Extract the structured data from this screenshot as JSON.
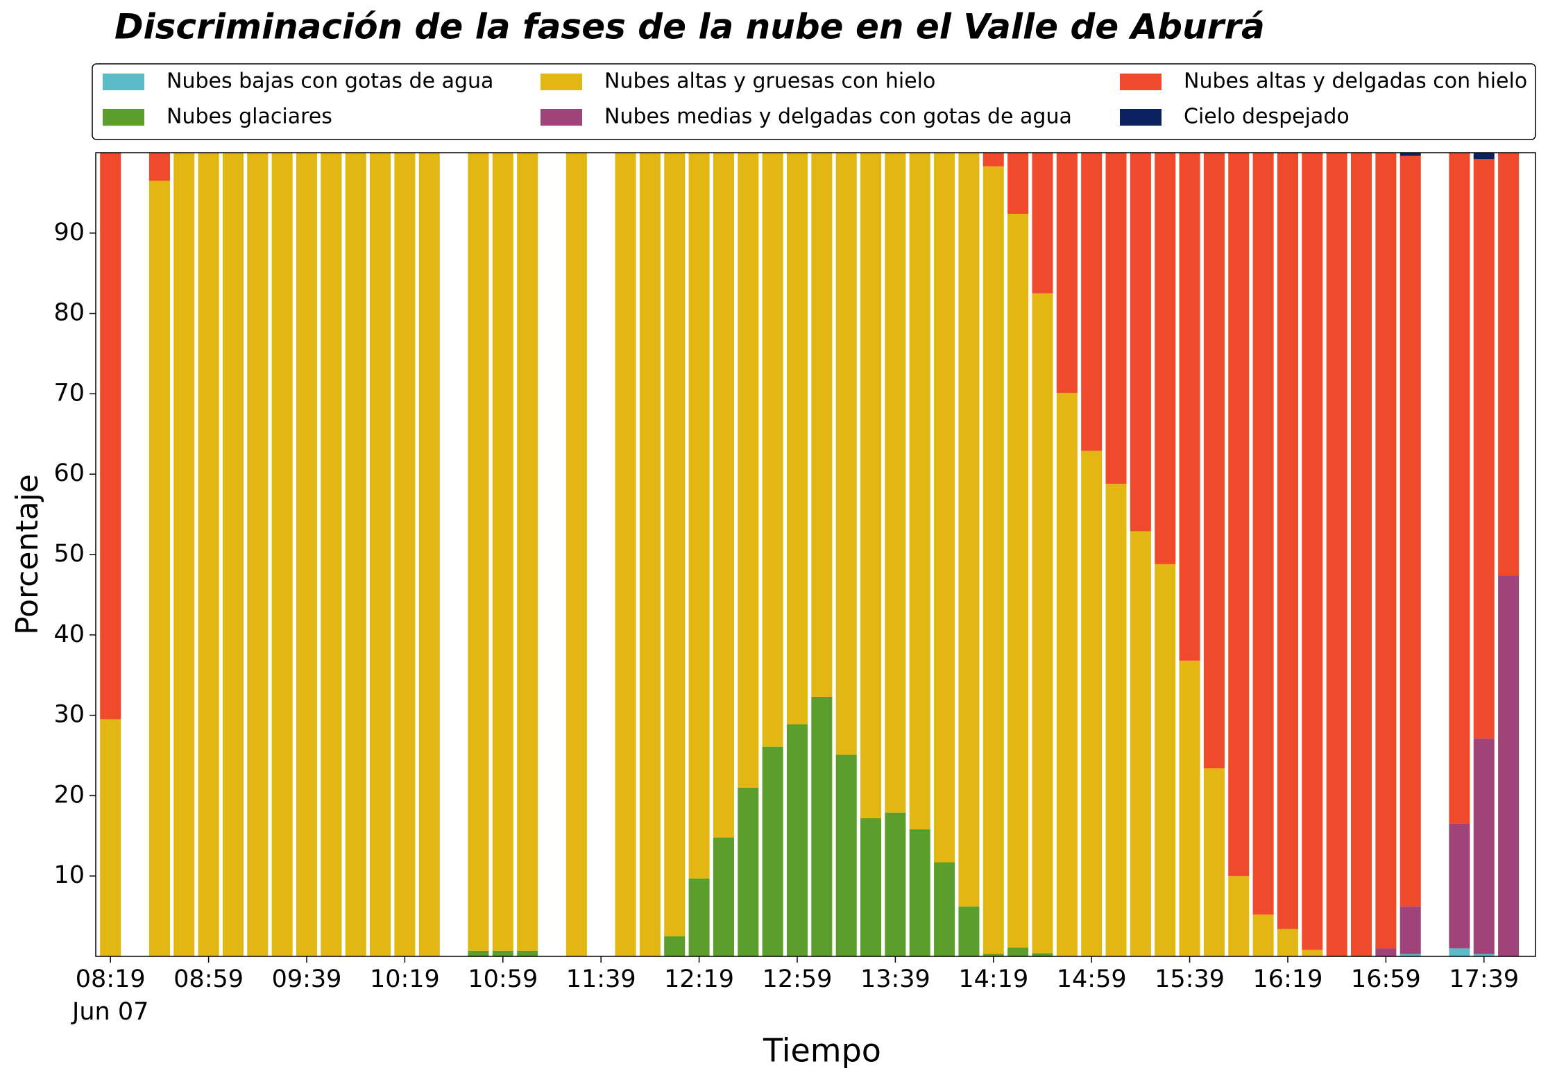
{
  "chart_data": {
    "type": "bar",
    "stacked": true,
    "title": "Discriminación de la fases de la nube en el Valle de Aburrá",
    "xlabel": "Tiempo",
    "ylabel": "Porcentaje",
    "legend": "top",
    "x": [
      "08:19",
      "08:29",
      "08:39",
      "08:49",
      "08:59",
      "09:09",
      "09:19",
      "09:29",
      "09:39",
      "09:49",
      "09:59",
      "10:09",
      "10:19",
      "10:29",
      "10:39",
      "10:49",
      "10:59",
      "11:09",
      "11:19",
      "11:29",
      "11:39",
      "11:49",
      "11:59",
      "12:09",
      "12:19",
      "12:29",
      "12:39",
      "12:49",
      "12:59",
      "13:09",
      "13:19",
      "13:29",
      "13:39",
      "13:49",
      "13:59",
      "14:09",
      "14:19",
      "14:29",
      "14:39",
      "14:49",
      "14:59",
      "15:09",
      "15:19",
      "15:29",
      "15:39",
      "15:49",
      "15:59",
      "16:09",
      "16:19",
      "16:29",
      "16:39",
      "16:49",
      "16:59",
      "17:09",
      "17:19",
      "17:29",
      "17:39",
      "17:49"
    ],
    "xlim": [
      "08:13",
      "18:00"
    ],
    "xticks": [
      "08:19",
      "08:59",
      "09:39",
      "10:19",
      "10:59",
      "11:39",
      "12:19",
      "12:59",
      "13:39",
      "14:19",
      "14:59",
      "15:39",
      "16:19",
      "16:59",
      "17:39"
    ],
    "xtick_sublabel": "Jun 07",
    "ylim": [
      0,
      100
    ],
    "yticks": [
      10,
      20,
      30,
      40,
      50,
      60,
      70,
      80,
      90
    ],
    "series": [
      {
        "name": "Nubes bajas con gotas de agua",
        "color": "#5bbcc8",
        "values": [
          0,
          null,
          0,
          0,
          0,
          0,
          0,
          0,
          0,
          0,
          0,
          0,
          0,
          0,
          null,
          0,
          0,
          0,
          null,
          0,
          null,
          0,
          0,
          0,
          0,
          0,
          0,
          0,
          0,
          0,
          0,
          0,
          0,
          0,
          0,
          0,
          0,
          0,
          0,
          0,
          0,
          0,
          0,
          0,
          0,
          0,
          0,
          0,
          0,
          0,
          0,
          0,
          0,
          0.3,
          null,
          1,
          0.3,
          0
        ]
      },
      {
        "name": "Nubes glaciares",
        "color": "#5b9e2b",
        "values": [
          0,
          null,
          0,
          0,
          0,
          0,
          0,
          0,
          0,
          0,
          0,
          0,
          0,
          0,
          null,
          0.7,
          0.7,
          0.7,
          null,
          0,
          null,
          0,
          0,
          2.5,
          9.7,
          14.8,
          21,
          26.1,
          28.9,
          32.3,
          25.1,
          17.2,
          17.9,
          15.8,
          11.7,
          6.2,
          0.3,
          1.1,
          0.4,
          0,
          0,
          0,
          0,
          0,
          0,
          0,
          0,
          0,
          0,
          0,
          0,
          0,
          0,
          0,
          null,
          0,
          0,
          0
        ]
      },
      {
        "name": "Nubes altas y gruesas con hielo",
        "color": "#e3b713",
        "values": [
          29.5,
          null,
          96.5,
          100,
          100,
          100,
          100,
          100,
          100,
          100,
          100,
          100,
          100,
          100,
          null,
          99.3,
          99.3,
          99.3,
          null,
          100,
          null,
          100,
          100,
          97.5,
          90.3,
          85.2,
          79,
          73.9,
          71.1,
          67.7,
          74.9,
          82.8,
          82.1,
          84.2,
          88.3,
          93.8,
          98,
          91.3,
          82.1,
          70.1,
          62.9,
          58.8,
          52.9,
          48.8,
          36.8,
          23.4,
          10,
          5.2,
          3.4,
          0.8,
          0,
          0,
          0,
          0,
          null,
          0,
          0,
          0
        ]
      },
      {
        "name": "Nubes medias y delgadas con gotas de agua",
        "color": "#a0437a",
        "values": [
          0,
          null,
          0,
          0,
          0,
          0,
          0,
          0,
          0,
          0,
          0,
          0,
          0,
          0,
          null,
          0,
          0,
          0,
          null,
          0,
          null,
          0,
          0,
          0,
          0,
          0,
          0,
          0,
          0,
          0,
          0,
          0,
          0,
          0,
          0,
          0,
          0,
          0,
          0,
          0,
          0,
          0,
          0,
          0,
          0,
          0,
          0,
          0,
          0,
          0,
          0,
          0,
          1,
          5.9,
          null,
          15.5,
          26.8,
          47.4
        ]
      },
      {
        "name": "Nubes altas y delgadas con hielo",
        "color": "#ef4a2b",
        "values": [
          70.5,
          null,
          3.5,
          0,
          0,
          0,
          0,
          0,
          0,
          0,
          0,
          0,
          0,
          0,
          null,
          0,
          0,
          0,
          null,
          0,
          null,
          0,
          0,
          0,
          0,
          0,
          0,
          0,
          0,
          0,
          0,
          0,
          0,
          0,
          0,
          0,
          1.7,
          7.6,
          17.5,
          29.9,
          37.1,
          41.2,
          47.1,
          51.2,
          63.2,
          76.6,
          90,
          94.8,
          96.6,
          99.2,
          100,
          100,
          99,
          93.4,
          null,
          83.5,
          72.1,
          52.6
        ]
      },
      {
        "name": "Cielo despejado",
        "color": "#0b2160",
        "values": [
          0,
          null,
          0,
          0,
          0,
          0,
          0,
          0,
          0,
          0,
          0,
          0,
          0,
          0,
          null,
          0,
          0,
          0,
          null,
          0,
          null,
          0,
          0,
          0,
          0,
          0,
          0,
          0,
          0,
          0,
          0,
          0,
          0,
          0,
          0,
          0,
          0,
          0,
          0,
          0,
          0,
          0,
          0,
          0,
          0,
          0,
          0,
          0,
          0,
          0,
          0,
          0,
          0,
          0.4,
          null,
          0,
          0.8,
          0
        ]
      }
    ]
  }
}
